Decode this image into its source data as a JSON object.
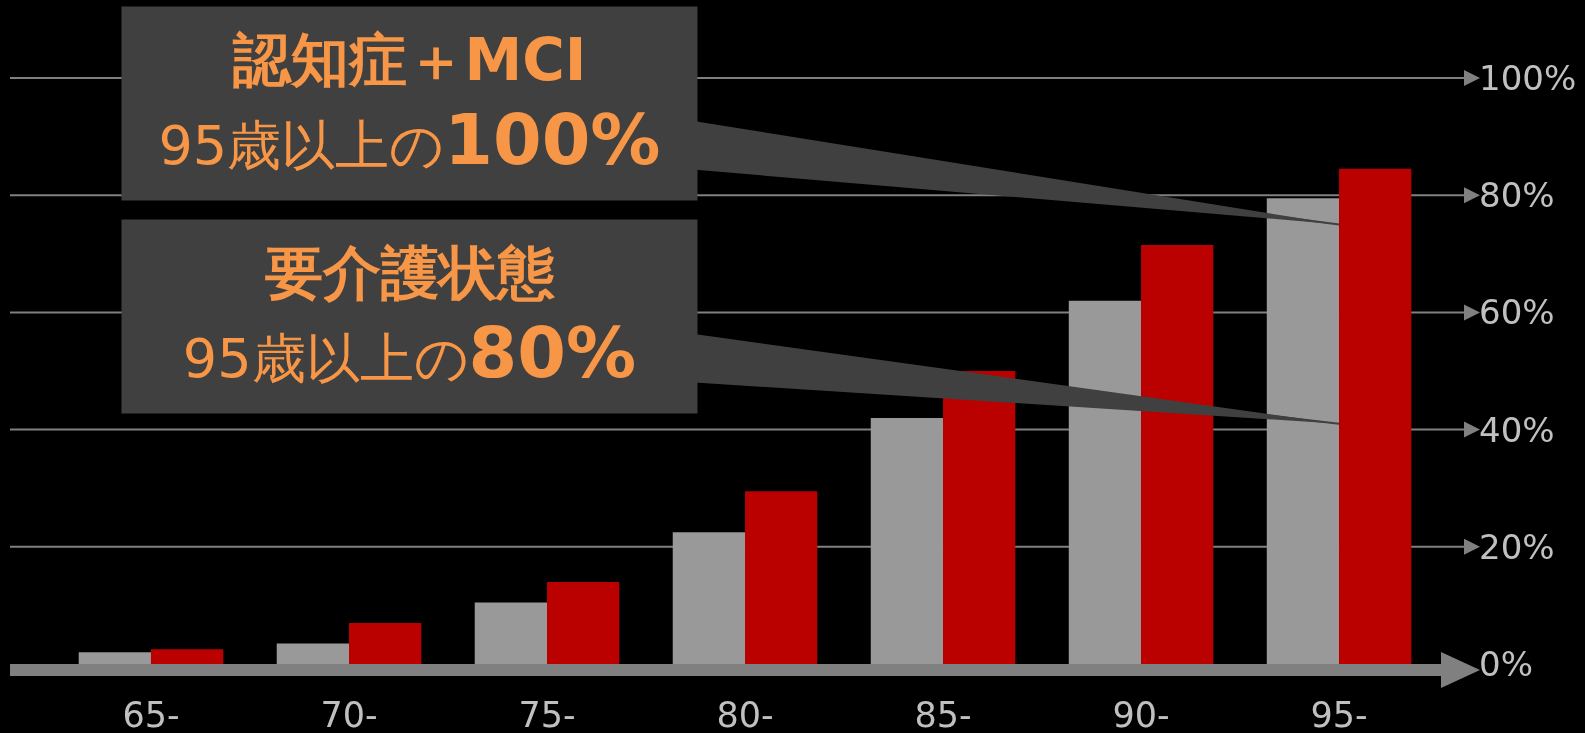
{
  "chart_data": {
    "type": "bar",
    "categories": [
      "65-",
      "70-",
      "75-",
      "80-",
      "85-",
      "90-",
      "95-"
    ],
    "series": [
      {
        "color": "#999999",
        "values": [
          2,
          3.5,
          10.5,
          22.5,
          42,
          62,
          79.5
        ]
      },
      {
        "color": "#bb0000",
        "values": [
          2.5,
          7,
          14,
          29.5,
          50,
          71.5,
          84.5
        ]
      }
    ],
    "ylim": [
      0,
      100
    ],
    "yticks": [
      {
        "value": 0,
        "label": "0%"
      },
      {
        "value": 20,
        "label": "20%"
      },
      {
        "value": 40,
        "label": "40%"
      },
      {
        "value": 60,
        "label": "60%"
      },
      {
        "value": 80,
        "label": "80%"
      },
      {
        "value": 100,
        "label": "100%"
      }
    ],
    "grid": "y",
    "annotations": [
      {
        "text": "認知症＋MCI\n95歳以上の100%",
        "x": "95-",
        "y": 75
      },
      {
        "text": "要介護状態\n95歳以上の80%",
        "x": "95-",
        "y": 41
      }
    ]
  }
}
